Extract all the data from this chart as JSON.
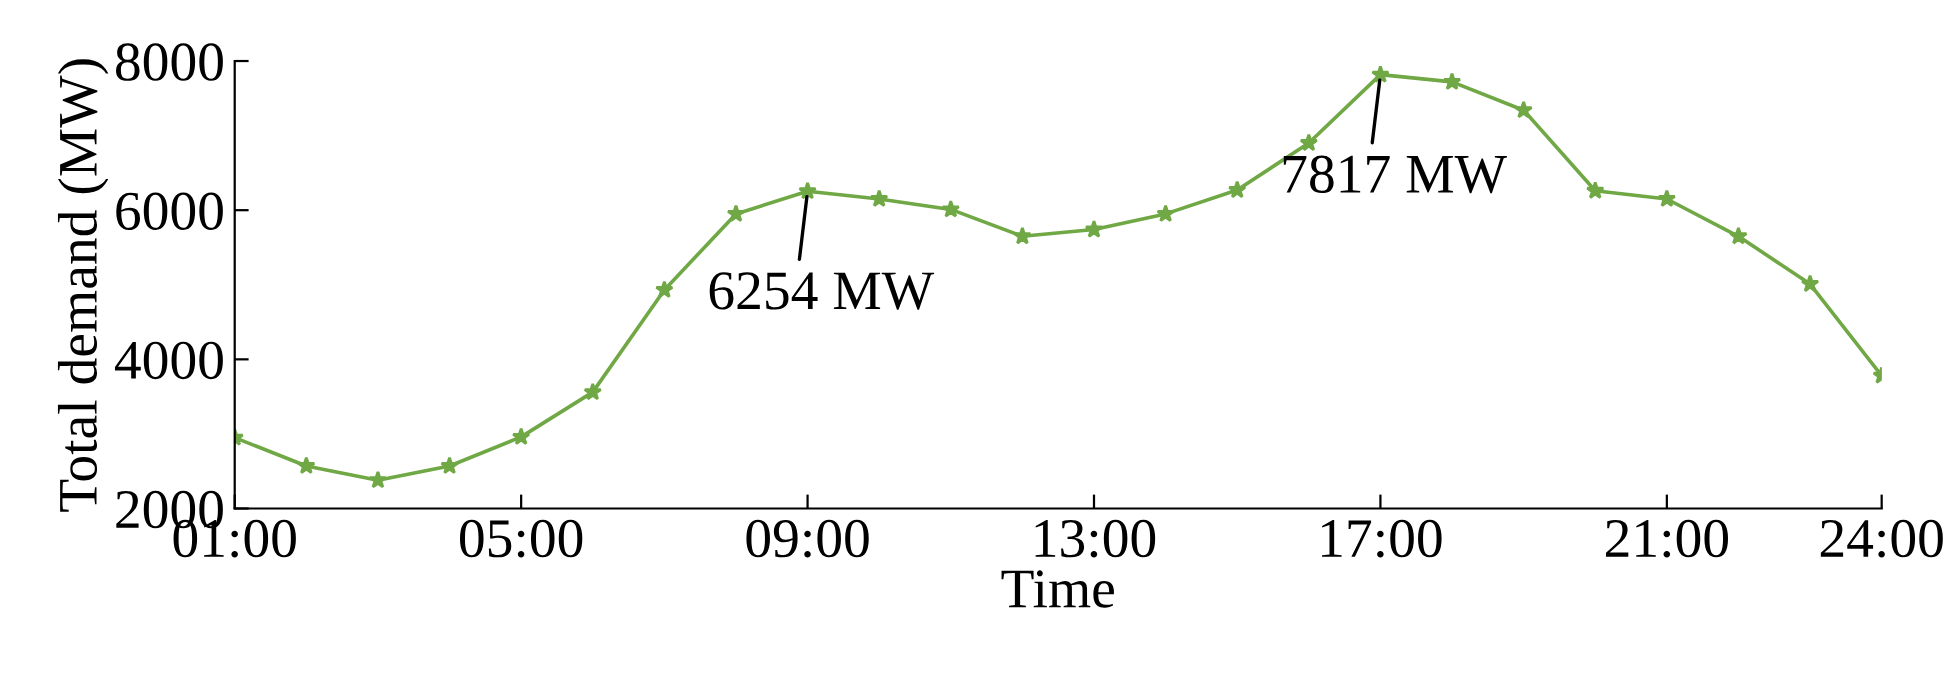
{
  "chart_data": {
    "type": "line",
    "xlabel": "Time",
    "ylabel": "Total demand (MW)",
    "x": [
      1,
      2,
      3,
      4,
      5,
      6,
      7,
      8,
      9,
      10,
      11,
      12,
      13,
      14,
      15,
      16,
      17,
      18,
      19,
      20,
      21,
      22,
      23,
      24
    ],
    "series": [
      {
        "color": "#70a845",
        "values": [
          2950,
          2570,
          2380,
          2570,
          2960,
          3560,
          4930,
          5950,
          6254,
          6150,
          6010,
          5650,
          5740,
          5950,
          6270,
          6900,
          7817,
          7720,
          7340,
          6260,
          6150,
          5650,
          5010,
          3780
        ]
      }
    ],
    "xlim": [
      1,
      24
    ],
    "xticks": [
      {
        "value": 1,
        "label": "01:00"
      },
      {
        "value": 5,
        "label": "05:00"
      },
      {
        "value": 9,
        "label": "09:00"
      },
      {
        "value": 13,
        "label": "13:00"
      },
      {
        "value": 17,
        "label": "17:00"
      },
      {
        "value": 21,
        "label": "21:00"
      },
      {
        "value": 24,
        "label": "24:00"
      }
    ],
    "ylim": [
      2000,
      8000
    ],
    "yticks": [
      2000,
      4000,
      6000,
      8000
    ],
    "annotations": [
      {
        "text": "6254 MW",
        "x": 9,
        "y": 6254
      },
      {
        "text": "7817 MW",
        "x": 17,
        "y": 7817
      }
    ],
    "marker": "star",
    "line_style": "solid",
    "grid": false,
    "legend": false
  }
}
